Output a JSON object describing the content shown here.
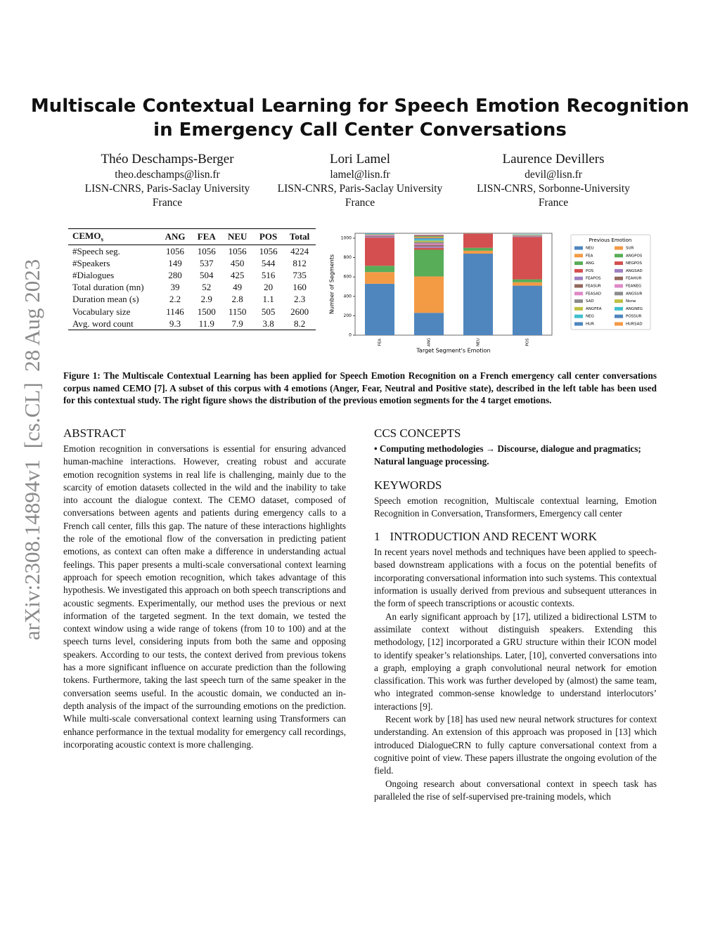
{
  "arxiv_stamp": "arXiv:2308.14894v1  [cs.CL]  28 Aug 2023",
  "title": [
    "Multiscale Contextual Learning for Speech Emotion Recognition",
    "in Emergency Call Center Conversations"
  ],
  "authors": [
    {
      "name": "Théo Deschamps-Berger",
      "email": "theo.deschamps@lisn.fr",
      "affiliation": "LISN-CNRS, Paris-Saclay University",
      "country": "France"
    },
    {
      "name": "Lori Lamel",
      "email": "lamel@lisn.fr",
      "affiliation": "LISN-CNRS, Paris-Saclay University",
      "country": "France"
    },
    {
      "name": "Laurence Devillers",
      "email": "devil@lisn.fr",
      "affiliation": "LISN-CNRS, Sorbonne-University",
      "country": "France"
    }
  ],
  "table": {
    "header": [
      "CEMO",
      "ANG",
      "FEA",
      "NEU",
      "POS",
      "Total"
    ],
    "header_subscript": "s",
    "rows": [
      [
        "#Speech seg.",
        1056,
        1056,
        1056,
        1056,
        4224
      ],
      [
        "#Speakers",
        149,
        537,
        450,
        544,
        812
      ],
      [
        "#Dialogues",
        280,
        504,
        425,
        516,
        735
      ],
      [
        "Total duration (mn)",
        39,
        52,
        49,
        20,
        160
      ],
      [
        "Duration mean (s)",
        2.2,
        2.9,
        2.8,
        1.1,
        2.3
      ],
      [
        "Vocabulary size",
        1146,
        1500,
        1150,
        505,
        2600
      ],
      [
        "Avg. word count",
        9.3,
        11.9,
        7.9,
        3.8,
        8.2
      ]
    ]
  },
  "chart_data": {
    "type": "stacked_bar",
    "y_label": "Number of Segments",
    "x_label": "Target Segment's Emotion",
    "legend_title": "Previous Emotion",
    "categories": [
      "FEA",
      "ANG",
      "NEU",
      "POS"
    ],
    "ylim": [
      0,
      1050
    ],
    "yticks": [
      0,
      200,
      400,
      600,
      800,
      1000
    ],
    "series": [
      {
        "name": "NEU",
        "color": "#4f86bd",
        "values": [
          530,
          230,
          840,
          510
        ]
      },
      {
        "name": "FEA",
        "color": "#f39a45",
        "values": [
          120,
          375,
          30,
          35
        ]
      },
      {
        "name": "ANG",
        "color": "#58ad58",
        "values": [
          65,
          275,
          30,
          30
        ]
      },
      {
        "name": "POS",
        "color": "#d44f4f",
        "values": [
          290,
          20,
          145,
          435
        ]
      },
      {
        "name": "FEAPOS",
        "color": "#9d7fc1",
        "values": [
          10,
          15,
          3,
          5
        ]
      },
      {
        "name": "FEASUR",
        "color": "#93675d",
        "values": [
          8,
          15,
          2,
          5
        ]
      },
      {
        "name": "FEASAD",
        "color": "#df88c7",
        "values": [
          8,
          15,
          2,
          5
        ]
      },
      {
        "name": "SAD",
        "color": "#8c8c8c",
        "values": [
          5,
          15,
          2,
          5
        ]
      },
      {
        "name": "ANGFEA",
        "color": "#bfbf45",
        "values": [
          5,
          15,
          2,
          5
        ]
      },
      {
        "name": "NEG",
        "color": "#3fbfcf",
        "values": [
          5,
          15,
          0,
          5
        ]
      },
      {
        "name": "HUR",
        "color": "#4f86bd",
        "values": [
          4,
          10,
          0,
          0
        ]
      },
      {
        "name": "SUR",
        "color": "#f39a45",
        "values": [
          0,
          10,
          0,
          0
        ]
      },
      {
        "name": "ANGPOS",
        "color": "#58ad58",
        "values": [
          0,
          10,
          0,
          0
        ]
      },
      {
        "name": "NEGPOS",
        "color": "#d44f4f",
        "values": [
          0,
          5,
          0,
          0
        ]
      },
      {
        "name": "ANGSAD",
        "color": "#9d7fc1",
        "values": [
          0,
          5,
          0,
          0
        ]
      },
      {
        "name": "FEAHUR",
        "color": "#93675d",
        "values": [
          0,
          5,
          0,
          0
        ]
      },
      {
        "name": "FEANEG",
        "color": "#df88c7",
        "values": [
          0,
          0,
          0,
          0
        ]
      },
      {
        "name": "ANGSUR",
        "color": "#8c8c8c",
        "values": [
          0,
          0,
          0,
          0
        ]
      },
      {
        "name": "None",
        "color": "#bfbf45",
        "values": [
          0,
          0,
          0,
          0
        ]
      },
      {
        "name": "ANGNEG",
        "color": "#3fbfcf",
        "values": [
          0,
          0,
          0,
          0
        ]
      },
      {
        "name": "POSSUR",
        "color": "#4f86bd",
        "values": [
          0,
          0,
          0,
          0
        ]
      },
      {
        "name": "HURSAD",
        "color": "#f39a45",
        "values": [
          0,
          0,
          0,
          0
        ]
      }
    ]
  },
  "caption": "Figure 1: The Multiscale Contextual Learning has been applied for Speech Emotion Recognition on a French emergency call center conversations corpus named CEMO [7]. A subset of this corpus with 4 emotions (Anger, Fear, Neutral and Positive state), described in the left table has been used for this contextual study. The right figure shows the distribution of the previous emotion segments for the 4 target emotions.",
  "abstract": {
    "heading": "ABSTRACT",
    "text": "Emotion recognition in conversations is essential for ensuring advanced human-machine interactions. However, creating robust and accurate emotion recognition systems in real life is challenging, mainly due to the scarcity of emotion datasets collected in the wild and the inability to take into account the dialogue context. The CEMO dataset, composed of conversations between agents and patients during emergency calls to a French call center, fills this gap. The nature of these interactions highlights the role of the emotional flow of the conversation in predicting patient emotions, as context can often make a difference in understanding actual feelings. This paper presents a multi-scale conversational context learning approach for speech emotion recognition, which takes advantage of this hypothesis. We investigated this approach on both speech transcriptions and acoustic segments. Experimentally, our method uses the previous or next information of the targeted segment. In the text domain, we tested the context window using a wide range of tokens (from 10 to 100) and at the speech turns level, considering inputs from both the same and opposing speakers. According to our tests, the context derived from previous tokens has a more significant influence on accurate prediction than the following tokens. Furthermore, taking the last speech turn of the same speaker in the conversation seems useful. In the acoustic domain, we conducted an in-depth analysis of the impact of the surrounding emotions on the prediction. While multi-scale conversational context learning using Transformers can enhance performance in the textual modality for emergency call recordings, incorporating acoustic context is more challenging."
  },
  "ccs": {
    "heading": "CCS CONCEPTS",
    "text": "• Computing methodologies → Discourse, dialogue and pragmatics; Natural language processing."
  },
  "keywords": {
    "heading": "KEYWORDS",
    "text": "Speech emotion recognition, Multiscale contextual learning, Emotion Recognition in Conversation, Transformers, Emergency call center"
  },
  "section": {
    "number": "1",
    "heading": "INTRODUCTION AND RECENT WORK",
    "paragraphs": [
      "In recent years novel methods and techniques have been applied to speech-based downstream applications with a focus on the potential benefits of incorporating conversational information into such systems. This contextual information is usually derived from previous and subsequent utterances in the form of speech transcriptions or acoustic contexts.",
      "An early significant approach by [17], utilized a bidirectional LSTM to assimilate context without distinguish speakers. Extending this methodology, [12] incorporated a GRU structure within their ICON model to identify speaker’s relationships. Later, [10], converted conversations into a graph, employing a graph convolutional neural network for emotion classification. This work was further developed by (almost) the same team, who integrated common-sense knowledge to understand interlocutors’ interactions [9].",
      "Recent work by [18] has used new neural network structures for context understanding. An extension of this approach was proposed in [13] which introduced DialogueCRN to fully capture conversational context from a cognitive point of view. These papers illustrate the ongoing evolution of the field.",
      "Ongoing research about conversational context in speech task has paralleled the rise of self-supervised pre-training models, which"
    ]
  }
}
